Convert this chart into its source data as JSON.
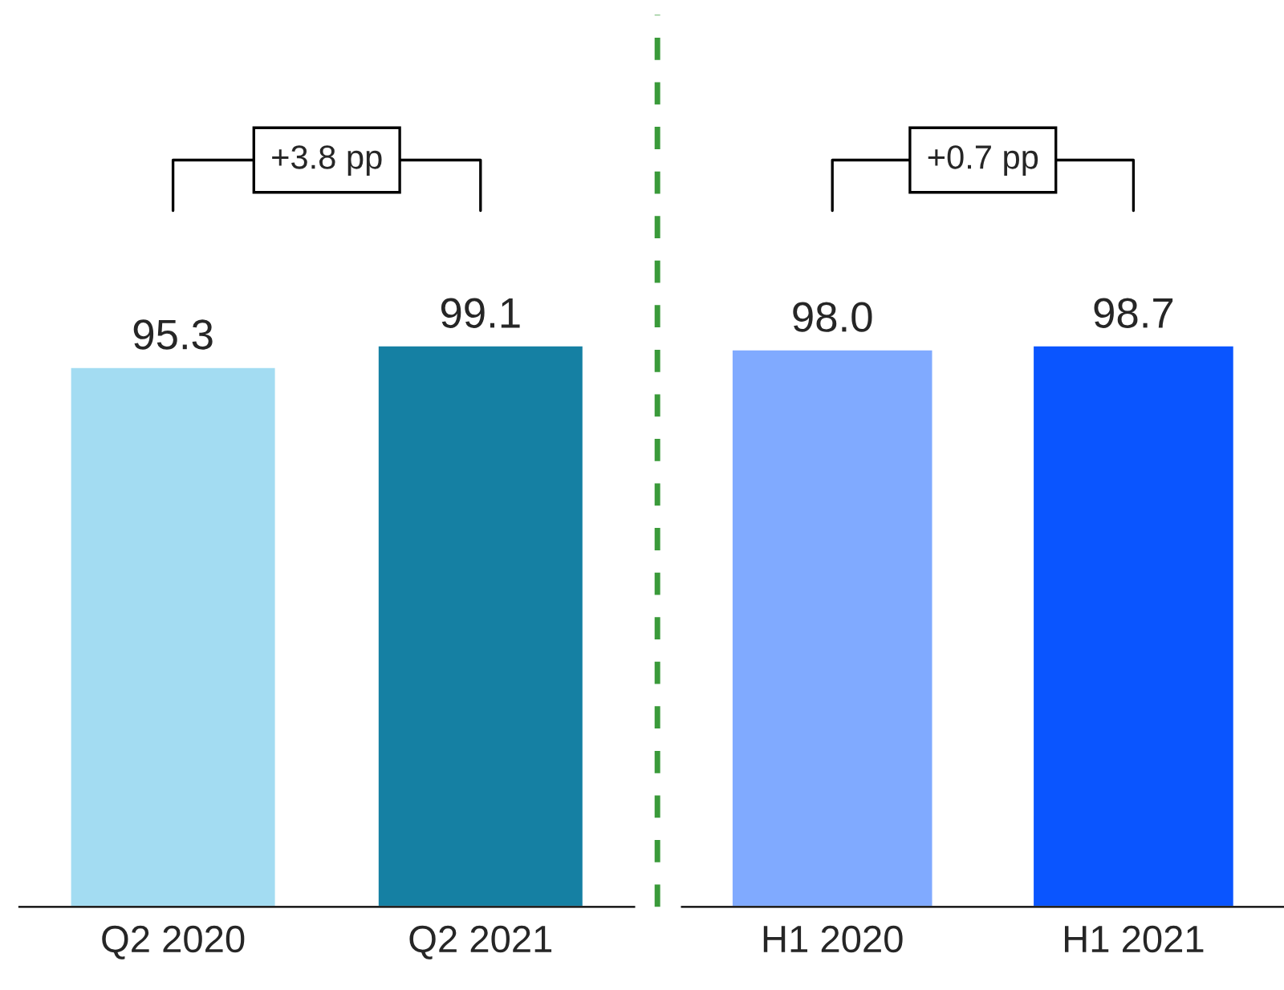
{
  "chart_data": [
    {
      "type": "bar",
      "categories": [
        "Q2 2020",
        "Q2 2021"
      ],
      "values": [
        95.3,
        99.1
      ],
      "colors": [
        "#a3dcf2",
        "#1580a3"
      ],
      "value_labels": [
        "95.3",
        "99.1"
      ],
      "tick_labels": "x",
      "annotations": [
        "+3.8 pp"
      ]
    },
    {
      "type": "bar",
      "categories": [
        "H1 2020",
        "H1 2021"
      ],
      "values": [
        98.0,
        98.7
      ],
      "colors": [
        "#80aaff",
        "#0a55ff"
      ],
      "value_labels": [
        "98.0",
        "98.7"
      ],
      "tick_labels": "x",
      "annotations": [
        "+0.7 pp"
      ]
    }
  ]
}
